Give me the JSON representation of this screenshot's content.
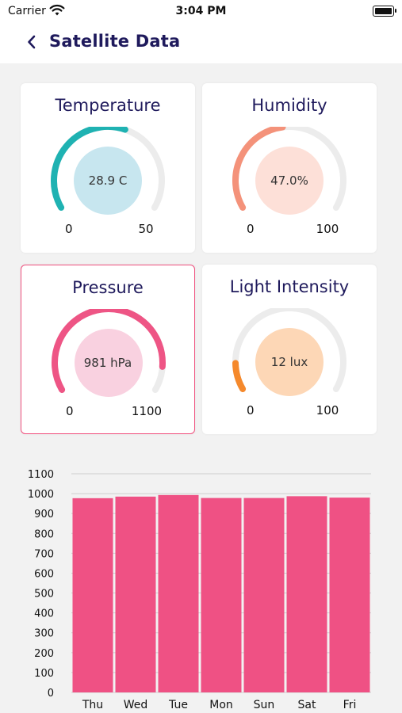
{
  "status": {
    "carrier": "Carrier",
    "time": "3:04 PM"
  },
  "header": {
    "title": "Satellite Data"
  },
  "gauges": [
    {
      "label": "Temperature",
      "value_text": "28.9 C",
      "min": "0",
      "max": "50",
      "fraction": 0.578,
      "color": "#1fb2b2",
      "fill": "#c7e6ef"
    },
    {
      "label": "Humidity",
      "value_text": "47.0%",
      "min": "0",
      "max": "100",
      "fraction": 0.47,
      "color": "#f4927a",
      "fill": "#fde0d8"
    },
    {
      "label": "Pressure",
      "value_text": "981 hPa",
      "min": "0",
      "max": "1100",
      "fraction": 0.892,
      "color": "#ee5585",
      "fill": "#f9d1e0"
    },
    {
      "label": "Light Intensity",
      "value_text": "12 lux",
      "min": "0",
      "max": "100",
      "fraction": 0.12,
      "color": "#f5892c",
      "fill": "#fdd7b6"
    }
  ],
  "chart_data": {
    "type": "bar",
    "categories": [
      "Thu",
      "Wed",
      "Tue",
      "Mon",
      "Sun",
      "Sat",
      "Fri"
    ],
    "values": [
      977,
      985,
      993,
      978,
      978,
      987,
      980
    ],
    "yticks": [
      0,
      100,
      200,
      300,
      400,
      500,
      600,
      700,
      800,
      900,
      1000,
      1100
    ],
    "ylim": [
      0,
      1100
    ],
    "bar_color": "#ef5184",
    "grid": true
  }
}
